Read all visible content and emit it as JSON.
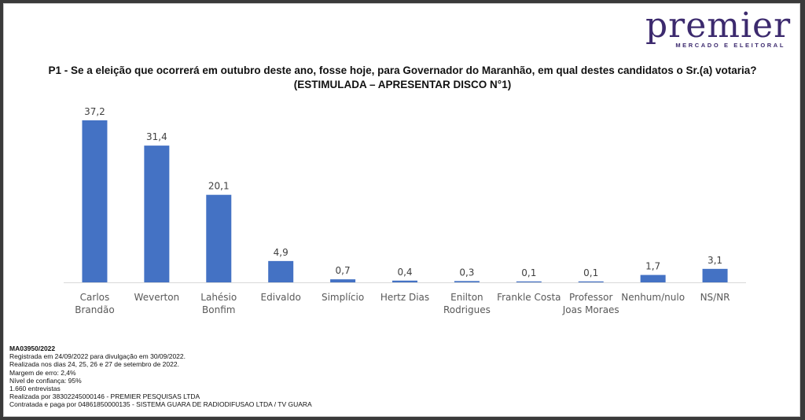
{
  "logo": {
    "word": "premier",
    "tagline": "MERCADO E ELEITORAL"
  },
  "header": {
    "question": "P1 - Se a eleição que ocorrerá em outubro deste ano, fosse hoje, para Governador do Maranhão, em qual destes candidatos o Sr.(a) votaria?",
    "subtitle": "(ESTIMULADA – APRESENTAR DISCO N°1)"
  },
  "chart_data": {
    "type": "bar",
    "categories": [
      [
        "Carlos",
        "Brandão"
      ],
      [
        "Weverton"
      ],
      [
        "Lahésio",
        "Bonfim"
      ],
      [
        "Edivaldo"
      ],
      [
        "Simplício"
      ],
      [
        "Hertz Dias"
      ],
      [
        "Enilton",
        "Rodrigues"
      ],
      [
        "Frankle Costa"
      ],
      [
        "Professor",
        "Joas Moraes"
      ],
      [
        "Nenhum/nulo"
      ],
      [
        "NS/NR"
      ]
    ],
    "values": [
      37.2,
      31.4,
      20.1,
      4.9,
      0.7,
      0.4,
      0.3,
      0.1,
      0.1,
      1.7,
      3.1
    ],
    "value_labels": [
      "37,2",
      "31,4",
      "20,1",
      "4,9",
      "0,7",
      "0,4",
      "0,3",
      "0,1",
      "0,1",
      "1,7",
      "3,1"
    ],
    "bar_color": "#4472c4",
    "ylim": [
      0,
      40
    ],
    "grid": false,
    "legend": "none"
  },
  "footer": {
    "code": "MA03950/2022",
    "lines": [
      "Registrada em 24/09/2022 para divulgação em 30/09/2022.",
      "Realizada nos dias 24, 25, 26 e 27 de setembro de 2022.",
      "Margem de erro: 2,4%",
      "Nível de confiança: 95%",
      "1.660 entrevistas",
      "Realizada por 38302245000146 - PREMIER PESQUISAS LTDA",
      "Contratada e paga por 04861850000135 - SISTEMA GUARA DE RADIODIFUSAO LTDA / TV GUARA"
    ]
  }
}
